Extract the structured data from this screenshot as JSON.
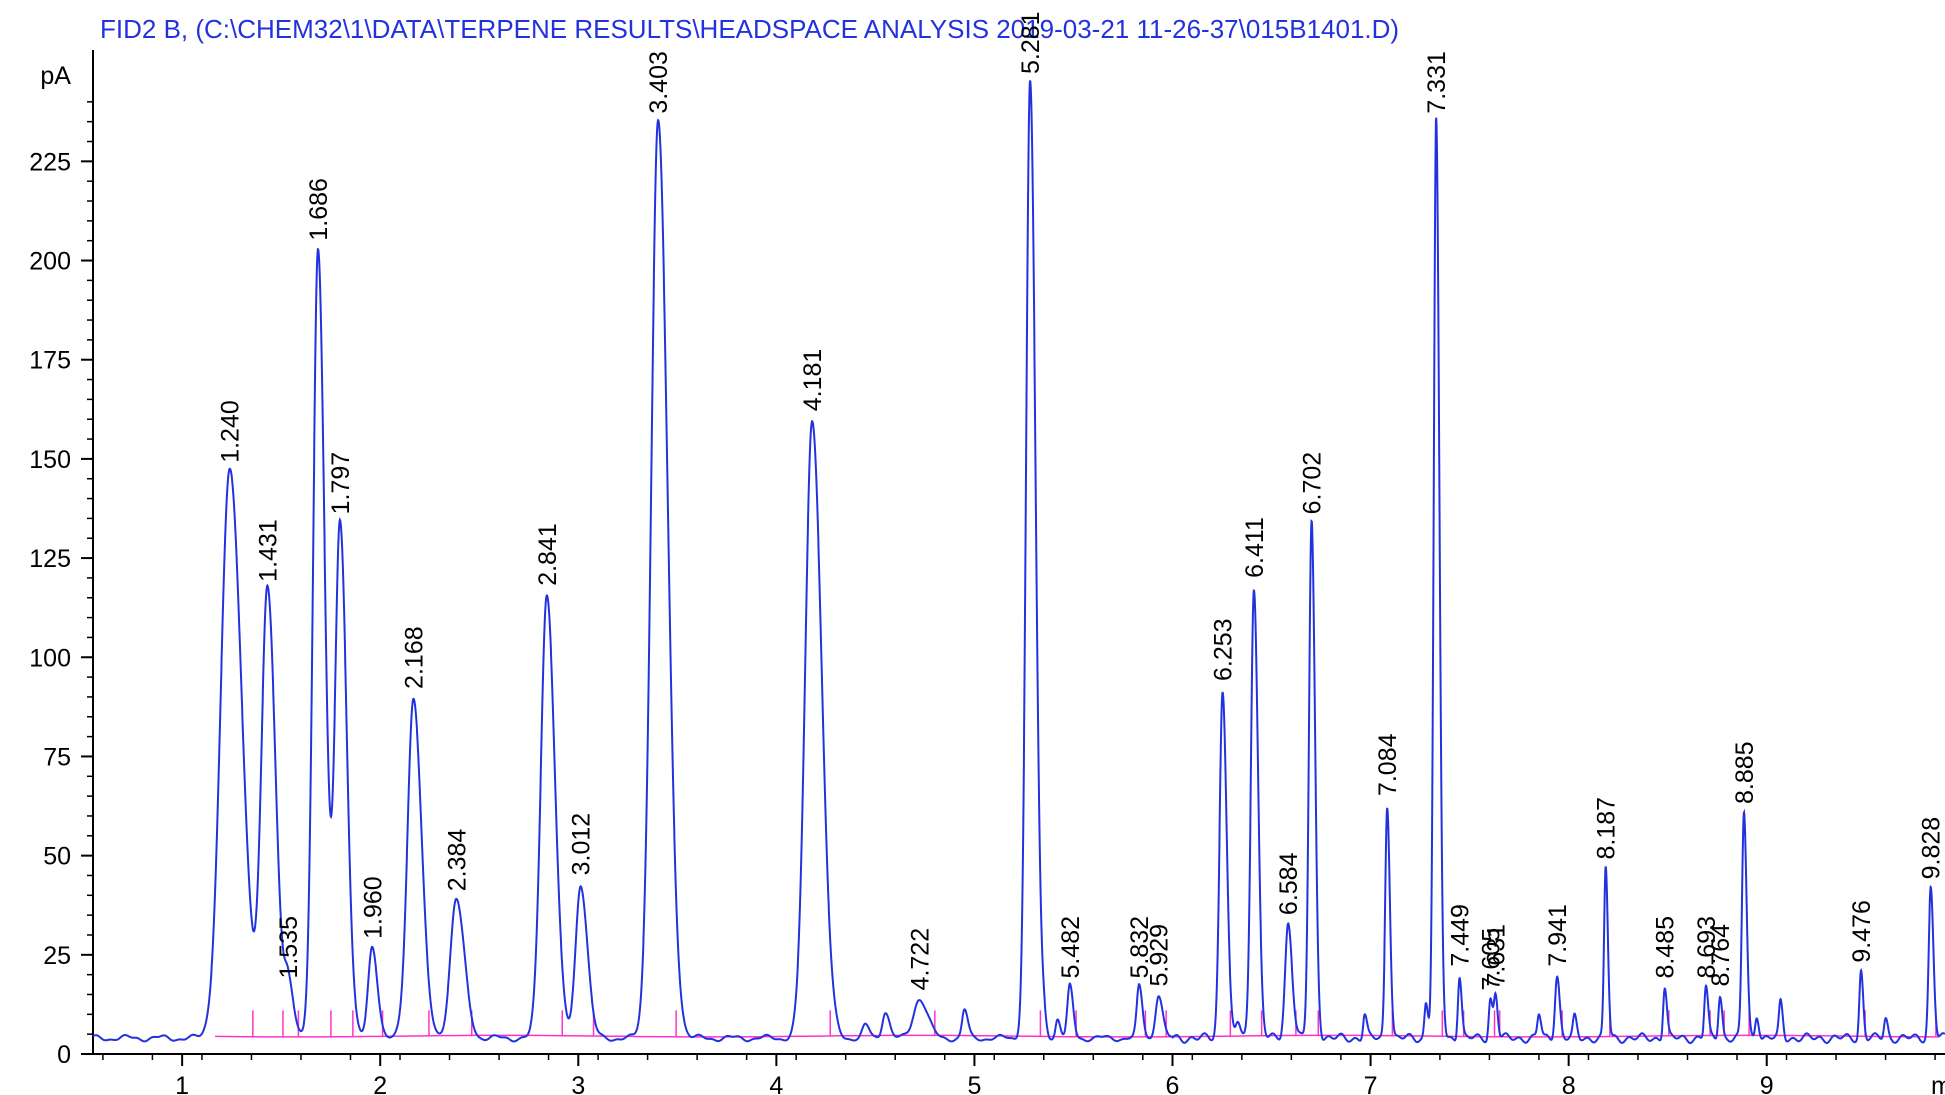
{
  "title": "FID2 B,  (C:\\CHEM32\\1\\DATA\\TERPENE RESULTS\\HEADSPACE ANALYSIS 2019-03-21 11-26-37\\015B1401.D)",
  "colors": {
    "trace": "#2233dd",
    "baseline": "#ff33cc",
    "axis": "#000000",
    "title": "#2233dd"
  },
  "chart_data": {
    "type": "line",
    "title": "FID2 B,  (C:\\CHEM32\\1\\DATA\\TERPENE RESULTS\\HEADSPACE ANALYSIS 2019-03-21 11-26-37\\015B1401.D)",
    "ylabel": "pA",
    "xlabel": "mi",
    "xlim": [
      0.55,
      9.9
    ],
    "ylim": [
      0,
      245
    ],
    "x_ticks": [
      "1",
      "2",
      "3",
      "4",
      "5",
      "6",
      "7",
      "8",
      "9"
    ],
    "y_ticks": [
      "0",
      "25",
      "50",
      "75",
      "100",
      "125",
      "150",
      "175",
      "200",
      "225"
    ],
    "baseline_level": 4,
    "peaks": [
      {
        "rt": 1.24,
        "label": "1.240",
        "height": 147,
        "width": 0.045
      },
      {
        "rt": 1.431,
        "label": "1.431",
        "height": 117,
        "width": 0.03
      },
      {
        "rt": 1.535,
        "label": "1.535",
        "height": 17,
        "width": 0.02
      },
      {
        "rt": 1.686,
        "label": "1.686",
        "height": 203,
        "width": 0.025
      },
      {
        "rt": 1.797,
        "label": "1.797",
        "height": 134,
        "width": 0.025
      },
      {
        "rt": 1.96,
        "label": "1.960",
        "height": 27,
        "width": 0.02
      },
      {
        "rt": 2.168,
        "label": "2.168",
        "height": 90,
        "width": 0.03
      },
      {
        "rt": 2.384,
        "label": "2.384",
        "height": 39,
        "width": 0.03
      },
      {
        "rt": 2.841,
        "label": "2.841",
        "height": 116,
        "width": 0.03
      },
      {
        "rt": 3.012,
        "label": "3.012",
        "height": 43,
        "width": 0.025
      },
      {
        "rt": 3.403,
        "label": "3.403",
        "height": 235,
        "width": 0.035
      },
      {
        "rt": 4.181,
        "label": "4.181",
        "height": 160,
        "width": 0.035
      },
      {
        "rt": 4.722,
        "label": "4.722",
        "height": 14,
        "width": 0.03
      },
      {
        "rt": 5.281,
        "label": "5.281",
        "height": 245,
        "width": 0.02
      },
      {
        "rt": 5.482,
        "label": "5.482",
        "height": 17,
        "width": 0.012
      },
      {
        "rt": 5.832,
        "label": "5.832",
        "height": 17,
        "width": 0.012
      },
      {
        "rt": 5.929,
        "label": "5.929",
        "height": 15,
        "width": 0.015
      },
      {
        "rt": 6.253,
        "label": "6.253",
        "height": 92,
        "width": 0.015
      },
      {
        "rt": 6.411,
        "label": "6.411",
        "height": 118,
        "width": 0.015
      },
      {
        "rt": 6.584,
        "label": "6.584",
        "height": 33,
        "width": 0.015
      },
      {
        "rt": 6.702,
        "label": "6.702",
        "height": 134,
        "width": 0.013
      },
      {
        "rt": 7.084,
        "label": "7.084",
        "height": 63,
        "width": 0.01
      },
      {
        "rt": 7.331,
        "label": "7.331",
        "height": 235,
        "width": 0.012
      },
      {
        "rt": 7.449,
        "label": "7.449",
        "height": 20,
        "width": 0.008
      },
      {
        "rt": 7.605,
        "label": "7.605",
        "height": 14,
        "width": 0.008
      },
      {
        "rt": 7.631,
        "label": "7.631",
        "height": 15,
        "width": 0.008
      },
      {
        "rt": 7.941,
        "label": "7.941",
        "height": 20,
        "width": 0.01
      },
      {
        "rt": 8.187,
        "label": "8.187",
        "height": 47,
        "width": 0.008
      },
      {
        "rt": 8.485,
        "label": "8.485",
        "height": 17,
        "width": 0.008
      },
      {
        "rt": 8.693,
        "label": "8.693",
        "height": 17,
        "width": 0.008
      },
      {
        "rt": 8.764,
        "label": "8.764",
        "height": 15,
        "width": 0.008
      },
      {
        "rt": 8.885,
        "label": "8.885",
        "height": 61,
        "width": 0.01
      },
      {
        "rt": 9.476,
        "label": "9.476",
        "height": 21,
        "width": 0.008
      },
      {
        "rt": 9.828,
        "label": "9.828",
        "height": 42,
        "width": 0.01
      }
    ],
    "minor_peaks": [
      {
        "rt": 4.45,
        "height": 7,
        "width": 0.015
      },
      {
        "rt": 4.55,
        "height": 11,
        "width": 0.015
      },
      {
        "rt": 4.95,
        "height": 11,
        "width": 0.012
      },
      {
        "rt": 5.35,
        "height": 8,
        "width": 0.01
      },
      {
        "rt": 5.42,
        "height": 9,
        "width": 0.01
      },
      {
        "rt": 6.33,
        "height": 8,
        "width": 0.01
      },
      {
        "rt": 6.97,
        "height": 10,
        "width": 0.008
      },
      {
        "rt": 7.28,
        "height": 13,
        "width": 0.008
      },
      {
        "rt": 7.85,
        "height": 10,
        "width": 0.008
      },
      {
        "rt": 8.03,
        "height": 9,
        "width": 0.008
      },
      {
        "rt": 9.07,
        "height": 13,
        "width": 0.008
      },
      {
        "rt": 8.95,
        "height": 10,
        "width": 0.008
      },
      {
        "rt": 9.6,
        "height": 9,
        "width": 0.008
      }
    ]
  }
}
